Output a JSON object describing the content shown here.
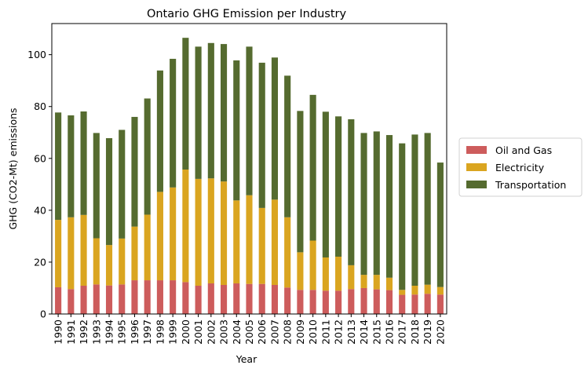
{
  "chart_data": {
    "type": "bar",
    "stacked": true,
    "title": "Ontario GHG Emission per Industry",
    "xlabel": "Year",
    "ylabel": "GHG (CO2-Mt) emissions",
    "ylim": [
      0,
      112
    ],
    "yticks": [
      0,
      20,
      40,
      60,
      80,
      100
    ],
    "grid": false,
    "legend_position": "right",
    "categories": [
      "1990",
      "1991",
      "1992",
      "1993",
      "1994",
      "1995",
      "1996",
      "1997",
      "1998",
      "1999",
      "2000",
      "2001",
      "2002",
      "2003",
      "2004",
      "2005",
      "2006",
      "2007",
      "2008",
      "2009",
      "2010",
      "2011",
      "2012",
      "2013",
      "2014",
      "2015",
      "2016",
      "2017",
      "2018",
      "2019",
      "2020"
    ],
    "series": [
      {
        "name": "Oil and Gas",
        "color": "#cd5c5c",
        "values": [
          10.3,
          9.6,
          10.9,
          11.4,
          11.0,
          11.4,
          13.0,
          13.0,
          13.0,
          13.0,
          12.3,
          10.9,
          11.8,
          11.2,
          11.8,
          11.6,
          11.6,
          11.2,
          10.2,
          9.3,
          9.3,
          9.0,
          9.0,
          9.6,
          10.0,
          9.5,
          9.2,
          7.4,
          7.5,
          7.8,
          7.5
        ]
      },
      {
        "name": "Electricity",
        "color": "#daa520",
        "values": [
          26.0,
          27.7,
          27.3,
          17.8,
          15.6,
          17.7,
          20.7,
          25.3,
          34.1,
          35.8,
          43.4,
          41.2,
          40.5,
          39.9,
          32.0,
          34.2,
          29.3,
          32.9,
          27.1,
          14.5,
          19.0,
          12.8,
          13.1,
          9.2,
          5.1,
          5.6,
          4.8,
          1.9,
          3.4,
          3.5,
          2.9
        ]
      },
      {
        "name": "Transportation",
        "color": "#556b2f",
        "values": [
          41.4,
          39.3,
          39.9,
          40.6,
          41.2,
          41.9,
          42.3,
          44.8,
          46.8,
          49.6,
          50.8,
          51.0,
          52.2,
          53.0,
          54.0,
          57.3,
          56.0,
          54.8,
          54.6,
          54.5,
          56.2,
          56.2,
          54.1,
          56.3,
          54.7,
          55.3,
          55.0,
          56.5,
          58.3,
          58.5,
          48.0
        ]
      }
    ]
  }
}
